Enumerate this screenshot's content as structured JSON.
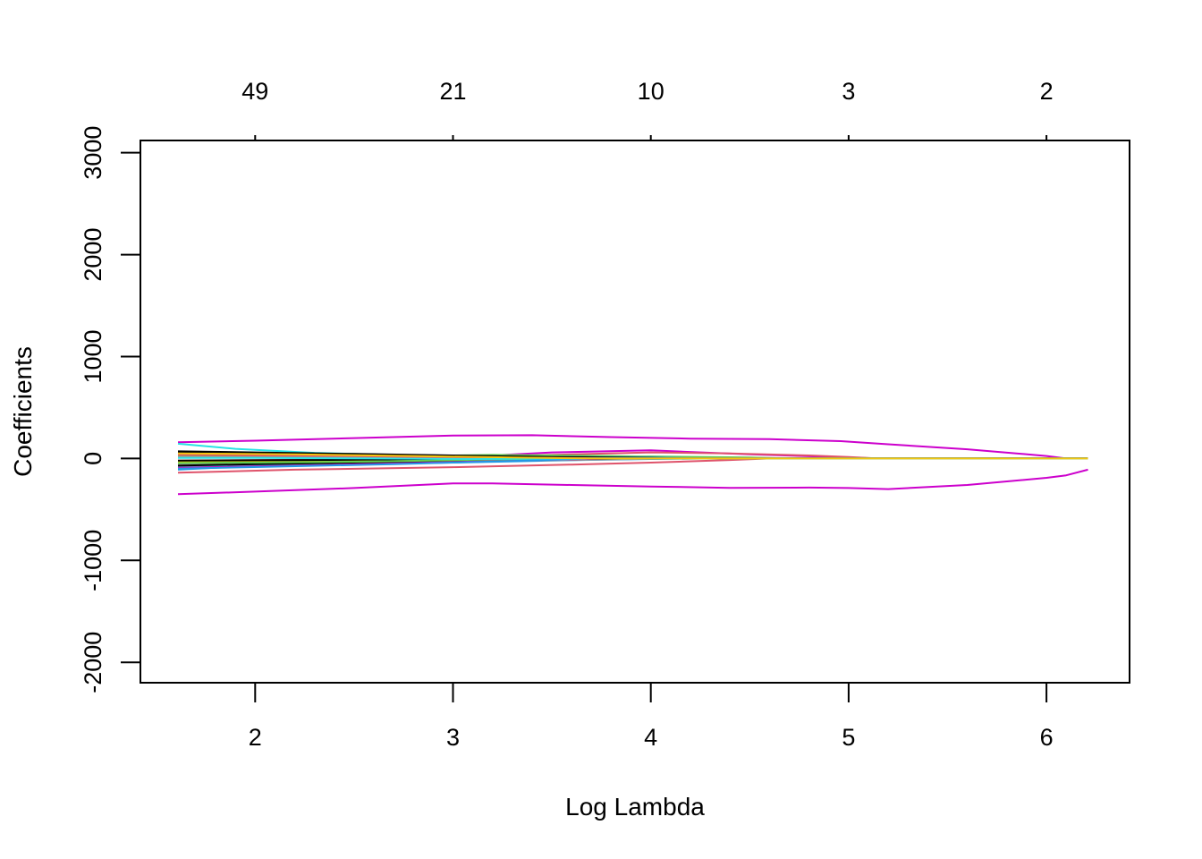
{
  "chart_data": {
    "type": "line",
    "title": "",
    "xlabel": "Log Lambda",
    "ylabel": "Coefficients",
    "xlim": [
      1.42,
      6.42
    ],
    "ylim": [
      -2200,
      3120
    ],
    "x_ticks": [
      2,
      3,
      4,
      5,
      6
    ],
    "x_tick_labels": [
      "2",
      "3",
      "4",
      "5",
      "6"
    ],
    "y_ticks": [
      -2000,
      -1000,
      0,
      1000,
      2000,
      3000
    ],
    "y_tick_labels": [
      "-2000",
      "-1000",
      "0",
      "1000",
      "2000",
      "3000"
    ],
    "top_axis_ticks": [
      2,
      3,
      4,
      5,
      6
    ],
    "top_axis_labels": [
      "49",
      "21",
      "10",
      "3",
      "2"
    ],
    "grid": false,
    "legend": "none",
    "series": [
      {
        "color": "#CC00CC",
        "x": [
          1.61,
          2.0,
          2.5,
          3.0,
          3.4,
          3.8,
          4.2,
          4.6,
          4.96,
          5.2,
          5.6,
          6.0,
          6.1,
          6.21
        ],
        "y": [
          160,
          175,
          200,
          225,
          228,
          210,
          195,
          190,
          170,
          140,
          90,
          25,
          0,
          0
        ]
      },
      {
        "color": "#CC00CC",
        "x": [
          1.61,
          2.0,
          2.5,
          3.0,
          3.2,
          3.6,
          4.0,
          4.4,
          4.8,
          5.0,
          5.2,
          5.6,
          6.0,
          6.1,
          6.21
        ],
        "y": [
          -350,
          -325,
          -290,
          -245,
          -245,
          -260,
          -275,
          -288,
          -285,
          -290,
          -300,
          -260,
          -190,
          -165,
          -110
        ]
      },
      {
        "color": "#CC00CC",
        "x": [
          1.61,
          2.2,
          3.0,
          3.5,
          4.0,
          4.5,
          5.0,
          5.15,
          6.21
        ],
        "y": [
          40,
          30,
          10,
          60,
          80,
          40,
          10,
          0,
          0
        ]
      },
      {
        "color": "#DF536B",
        "x": [
          1.61,
          2.2,
          3.0,
          3.6,
          4.0,
          4.4,
          4.6,
          5.0,
          6.21
        ],
        "y": [
          -140,
          -110,
          -85,
          -60,
          -40,
          -15,
          0,
          0,
          0
        ]
      },
      {
        "color": "#DF536B",
        "x": [
          1.61,
          2.5,
          3.0,
          3.6,
          4.0,
          4.4,
          4.8,
          5.0,
          5.15,
          6.21
        ],
        "y": [
          -20,
          -10,
          10,
          40,
          60,
          50,
          30,
          15,
          0,
          0
        ]
      },
      {
        "color": "#61D04F",
        "x": [
          1.61,
          2.0,
          2.5,
          3.0,
          3.5,
          4.0,
          4.5,
          4.7,
          6.21
        ],
        "y": [
          -65,
          -55,
          -40,
          -20,
          5,
          20,
          10,
          0,
          0
        ]
      },
      {
        "color": "#61D04F",
        "x": [
          1.61,
          2.5,
          3.2,
          3.8,
          4.2,
          4.5,
          6.21
        ],
        "y": [
          25,
          15,
          35,
          25,
          10,
          0,
          0
        ]
      },
      {
        "color": "#2297E6",
        "x": [
          1.61,
          2.0,
          2.5,
          3.0,
          3.5,
          4.0,
          4.3,
          6.21
        ],
        "y": [
          -110,
          -70,
          -55,
          -40,
          -20,
          -5,
          0,
          0
        ]
      },
      {
        "color": "#2297E6",
        "x": [
          1.61,
          2.2,
          3.0,
          3.6,
          4.0,
          4.3,
          6.21
        ],
        "y": [
          -40,
          -25,
          -5,
          15,
          10,
          0,
          0
        ]
      },
      {
        "color": "#28E2E5",
        "x": [
          1.61,
          1.9,
          2.3,
          2.8,
          3.3,
          3.8,
          4.1,
          6.21
        ],
        "y": [
          145,
          95,
          55,
          30,
          15,
          5,
          0,
          0
        ]
      },
      {
        "color": "#28E2E5",
        "x": [
          1.61,
          2.2,
          2.8,
          3.4,
          3.9,
          6.21
        ],
        "y": [
          -80,
          -60,
          -35,
          -15,
          0,
          0
        ]
      },
      {
        "color": "#F5C710",
        "x": [
          1.61,
          2.2,
          2.8,
          3.4,
          3.9,
          6.21
        ],
        "y": [
          -30,
          -20,
          -10,
          5,
          0,
          0
        ]
      },
      {
        "color": "#9E9E9E",
        "x": [
          1.61,
          2.2,
          2.8,
          3.4,
          4.0,
          6.21
        ],
        "y": [
          15,
          10,
          5,
          10,
          0,
          0
        ]
      },
      {
        "color": "#9E9E9E",
        "x": [
          1.61,
          2.3,
          3.0,
          3.6,
          4.1,
          6.21
        ],
        "y": [
          -55,
          -45,
          -30,
          -15,
          0,
          0
        ]
      },
      {
        "color": "#000000",
        "x": [
          1.61,
          2.0,
          2.5,
          3.0,
          3.5,
          4.0,
          4.2,
          6.21
        ],
        "y": [
          70,
          60,
          45,
          30,
          15,
          5,
          0,
          0
        ]
      },
      {
        "color": "#000000",
        "x": [
          1.61,
          2.0,
          2.5,
          3.0,
          3.5,
          4.0,
          4.2,
          6.21
        ],
        "y": [
          55,
          45,
          35,
          20,
          10,
          3,
          0,
          0
        ]
      },
      {
        "color": "#000000",
        "x": [
          1.61,
          2.0,
          2.5,
          3.0,
          3.5,
          3.9,
          6.21
        ],
        "y": [
          -70,
          -55,
          -40,
          -25,
          -10,
          0,
          0
        ]
      },
      {
        "color": "#000000",
        "x": [
          1.61,
          2.3,
          3.0,
          3.5,
          3.9,
          6.21
        ],
        "y": [
          -20,
          -15,
          -5,
          5,
          0,
          0
        ]
      },
      {
        "color": "#DF536B",
        "x": [
          1.61,
          2.0,
          2.5,
          3.0,
          3.5,
          3.9,
          6.21
        ],
        "y": [
          35,
          30,
          25,
          10,
          5,
          0,
          0
        ]
      },
      {
        "color": "#CD0BBC",
        "x": [
          1.61,
          2.2,
          2.8,
          3.3,
          3.8,
          6.21
        ],
        "y": [
          -90,
          -70,
          -45,
          -20,
          0,
          0
        ]
      },
      {
        "color": "#61D04F",
        "x": [
          1.61,
          2.0,
          2.6,
          3.2,
          3.7,
          6.21
        ],
        "y": [
          -45,
          -40,
          -30,
          -10,
          0,
          0
        ]
      },
      {
        "color": "#2297E6",
        "x": [
          1.61,
          2.1,
          2.7,
          3.3,
          3.7,
          6.21
        ],
        "y": [
          -100,
          -80,
          -55,
          -25,
          0,
          0
        ]
      },
      {
        "color": "#28E2E5",
        "x": [
          1.61,
          2.0,
          2.6,
          3.1,
          3.6,
          6.21
        ],
        "y": [
          5,
          5,
          0,
          -5,
          0,
          0
        ]
      },
      {
        "color": "#F5C710",
        "x": [
          1.61,
          2.2,
          2.8,
          3.3,
          3.7,
          6.21
        ],
        "y": [
          50,
          40,
          25,
          10,
          0,
          0
        ]
      }
    ]
  }
}
